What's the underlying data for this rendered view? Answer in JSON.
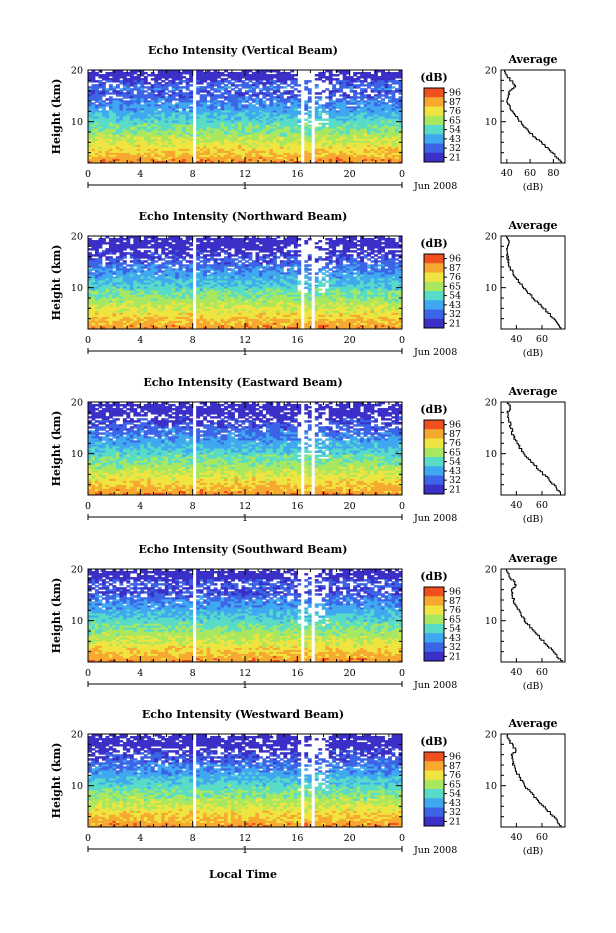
{
  "chart_data": {
    "type": "heatmap",
    "x_axis_label": "Local Time",
    "date_label": "Jun 2008",
    "day_label": "1",
    "x_ticks": [
      "0",
      "4",
      "8",
      "12",
      "16",
      "20",
      "0"
    ],
    "xlim_hours": [
      0,
      24
    ],
    "y_axis_label": "Height (km)",
    "y_ticks": [
      "10",
      "20"
    ],
    "ylim_km": [
      2,
      20
    ],
    "colorbar_unit": "(dB)",
    "colorbar_range_db": [
      21,
      96
    ],
    "colormap": [
      "#3a30c8",
      "#3c64e6",
      "#40a8f0",
      "#58dcc8",
      "#a8e860",
      "#f0e440",
      "#f6a830",
      "#f05020"
    ],
    "data_gaps_hours": [
      [
        7.9,
        8.2
      ],
      [
        16.3,
        16.6
      ],
      [
        17.0,
        17.3
      ]
    ],
    "average_panel_title": "Average",
    "average_x_label": "(dB)",
    "panels": [
      {
        "title": "Echo Intensity (Vertical Beam)",
        "colorbar_ticks": [
          "96",
          "87",
          "76",
          "65",
          "54",
          "43",
          "32",
          "21"
        ],
        "average_x_ticks": [
          "40",
          "60",
          "80"
        ],
        "average_xlim": [
          35,
          90
        ],
        "average_profile": {
          "height_km": [
            2,
            4,
            6,
            8,
            10,
            12,
            14,
            16,
            17,
            18,
            19,
            20
          ],
          "db": [
            88,
            80,
            70,
            60,
            52,
            45,
            40,
            42,
            48,
            44,
            40,
            38
          ]
        }
      },
      {
        "title": "Echo Intensity (Northward Beam)",
        "colorbar_ticks": [
          "96",
          "87",
          "76",
          "65",
          "54",
          "43",
          "32",
          "21"
        ],
        "average_x_ticks": [
          "40",
          "60"
        ],
        "average_xlim": [
          28,
          78
        ],
        "average_profile": {
          "height_km": [
            2,
            4,
            6,
            8,
            10,
            12,
            14,
            16,
            18,
            19,
            20
          ],
          "db": [
            76,
            70,
            62,
            54,
            46,
            40,
            35,
            33,
            33,
            35,
            32
          ]
        }
      },
      {
        "title": "Echo Intensity (Eastward Beam)",
        "colorbar_ticks": [
          "96",
          "87",
          "76",
          "65",
          "54",
          "43",
          "32",
          "21"
        ],
        "average_x_ticks": [
          "40",
          "60"
        ],
        "average_xlim": [
          28,
          78
        ],
        "average_profile": {
          "height_km": [
            2,
            4,
            6,
            8,
            10,
            12,
            14,
            16,
            18,
            19,
            20
          ],
          "db": [
            76,
            70,
            62,
            54,
            46,
            41,
            37,
            35,
            33,
            36,
            33
          ]
        }
      },
      {
        "title": "Echo Intensity (Southward Beam)",
        "colorbar_ticks": [
          "96",
          "87",
          "76",
          "65",
          "54",
          "43",
          "32",
          "21"
        ],
        "average_x_ticks": [
          "40",
          "60"
        ],
        "average_xlim": [
          28,
          78
        ],
        "average_profile": {
          "height_km": [
            2,
            4,
            6,
            8,
            10,
            12,
            14,
            16,
            17,
            18,
            19,
            20
          ],
          "db": [
            76,
            70,
            62,
            54,
            47,
            42,
            38,
            36,
            40,
            37,
            34,
            33
          ]
        }
      },
      {
        "title": "Echo Intensity (Westward Beam)",
        "colorbar_ticks": [
          "96",
          "87",
          "76",
          "65",
          "54",
          "43",
          "32",
          "21"
        ],
        "average_x_ticks": [
          "40",
          "60"
        ],
        "average_xlim": [
          28,
          78
        ],
        "average_profile": {
          "height_km": [
            2,
            4,
            6,
            8,
            10,
            12,
            14,
            16,
            17,
            18,
            19,
            20
          ],
          "db": [
            76,
            70,
            62,
            54,
            47,
            42,
            38,
            36,
            40,
            37,
            34,
            33
          ]
        }
      }
    ]
  }
}
